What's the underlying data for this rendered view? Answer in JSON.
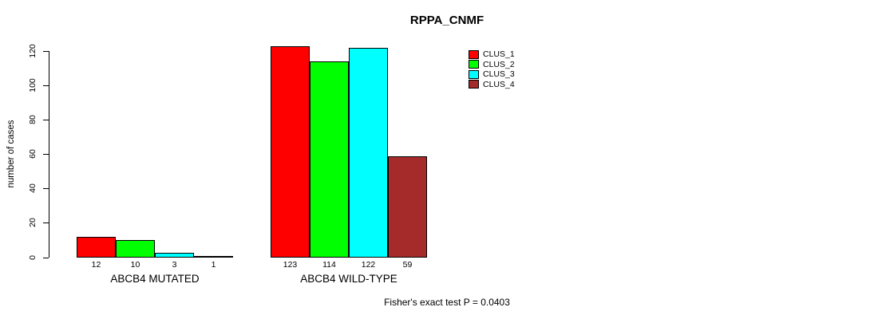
{
  "chart_data": {
    "type": "bar",
    "title": "RPPA_CNMF",
    "ylabel": "number of cases",
    "xlabel": "",
    "annotation": "Fisher's exact test P = 0.0403",
    "categories": [
      "ABCB4 MUTATED",
      "ABCB4 WILD-TYPE"
    ],
    "series": [
      {
        "name": "CLUS_1",
        "color": "#FF0000",
        "values": [
          12,
          123
        ]
      },
      {
        "name": "CLUS_2",
        "color": "#00FF00",
        "values": [
          10,
          114
        ]
      },
      {
        "name": "CLUS_3",
        "color": "#00FFFF",
        "values": [
          3,
          122
        ]
      },
      {
        "name": "CLUS_4",
        "color": "#A52A2A",
        "values": [
          1,
          59
        ]
      }
    ],
    "yticks": [
      0,
      20,
      40,
      60,
      80,
      100,
      120
    ],
    "ylim": [
      0,
      125
    ],
    "bar_value_labels": true,
    "legend_position": "top-right",
    "grid": false
  }
}
